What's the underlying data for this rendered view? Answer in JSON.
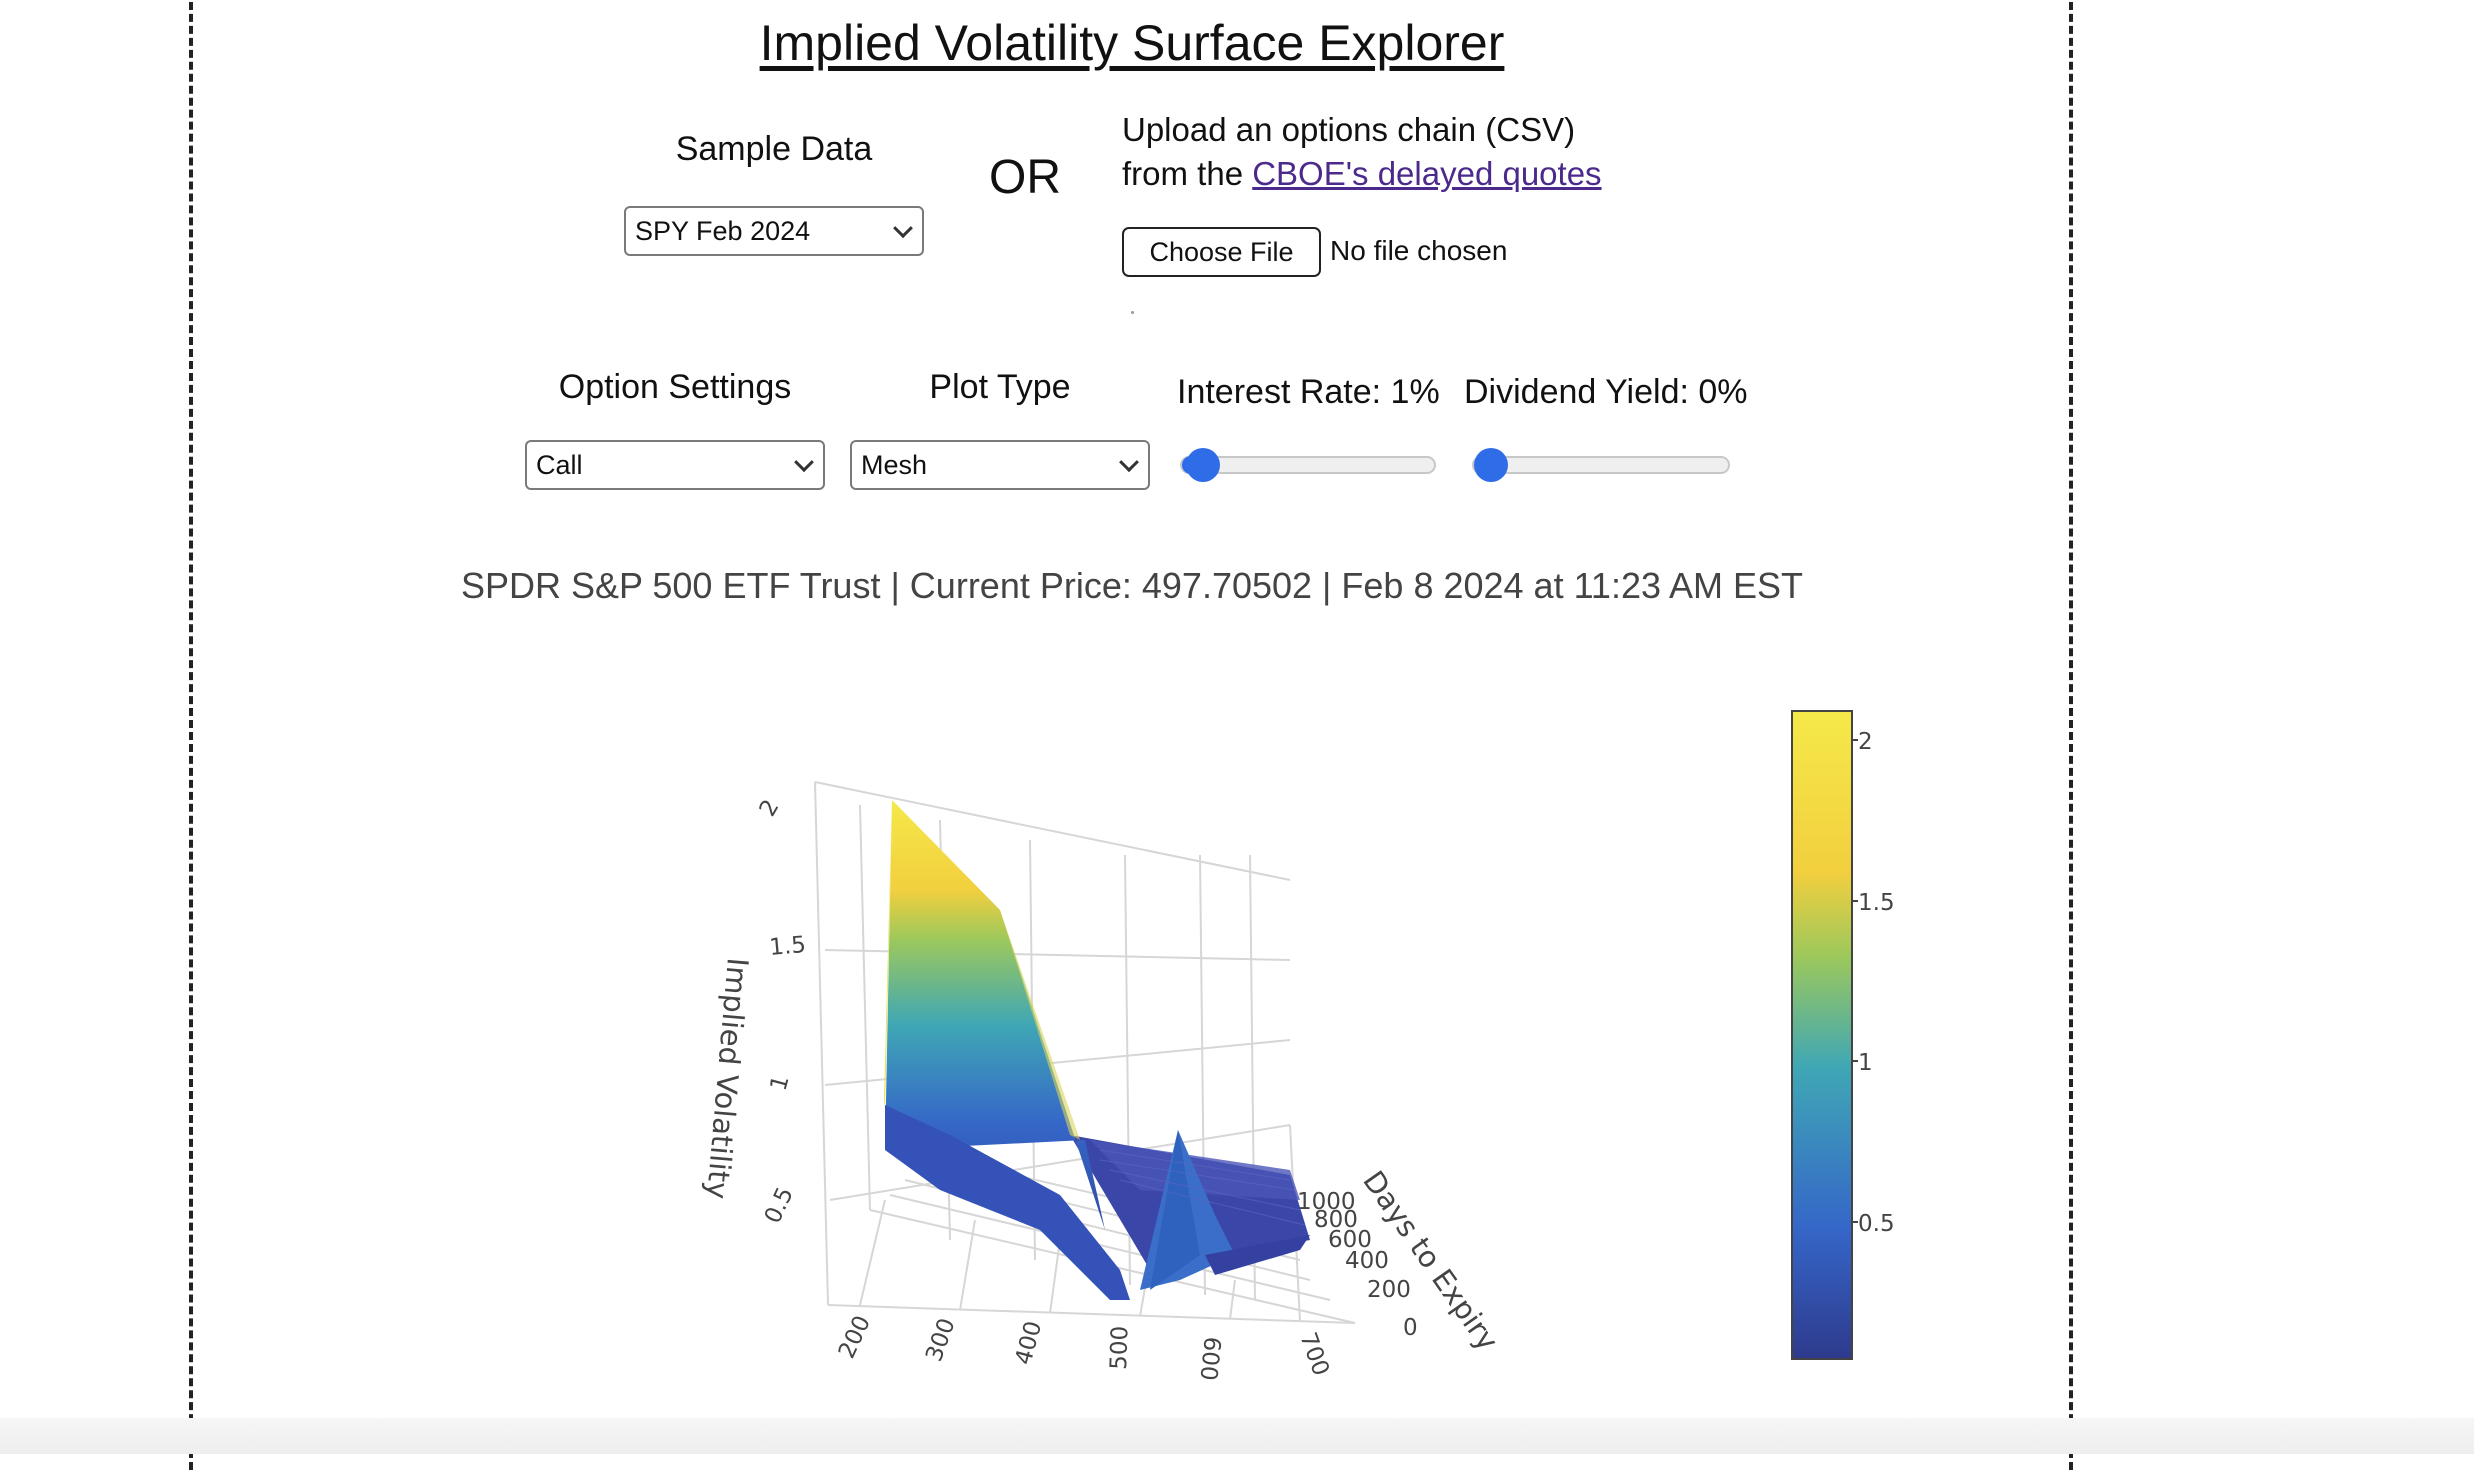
{
  "title": "Implied Volatility Surface Explorer",
  "sample": {
    "label": "Sample Data",
    "selected": "SPY Feb 2024"
  },
  "or_text": "OR",
  "upload": {
    "line1": "Upload an options chain (CSV)",
    "line2_prefix": "from the",
    "link_text": "CBOE's delayed quotes",
    "button_label": "Choose File",
    "status": "No file chosen"
  },
  "settings": {
    "option_label": "Option Settings",
    "option_selected": "Call",
    "plot_label": "Plot Type",
    "plot_selected": "Mesh",
    "interest_label": "Interest Rate: 1%",
    "interest_value": 1,
    "dividend_label": "Dividend Yield: 0%",
    "dividend_value": 0
  },
  "info_line": "SPDR S&P 500 ETF Trust | Current Price: 497.70502 | Feb 8 2024 at 11:23 AM EST",
  "chart_data": {
    "type": "surface",
    "zlabel": "Implied Volatility",
    "ylabel": "Days to Expiry",
    "xlabel": "",
    "x_ticks": [
      "200",
      "300",
      "400",
      "500",
      "600",
      "700"
    ],
    "y_ticks": [
      "0",
      "200",
      "400",
      "600",
      "800",
      "1000"
    ],
    "z_ticks": [
      "0.5",
      "1",
      "1.5",
      "2"
    ],
    "colorbar_ticks": [
      "0.5",
      "1",
      "1.5",
      "2"
    ],
    "colorscale": [
      "#2e3a8c",
      "#3566c8",
      "#3fa7b5",
      "#9cc85c",
      "#f2cf3e",
      "#f5e94a"
    ],
    "z_range": [
      0.05,
      2.1
    ],
    "surface": {
      "strikes": [
        190,
        260,
        330,
        400,
        450,
        500,
        550,
        600,
        650,
        700
      ],
      "near_expiry_iv": [
        2.1,
        1.7,
        1.05,
        0.45,
        0.28,
        0.12,
        0.6,
        0.22,
        0.18,
        0.16
      ],
      "long_expiry_iv": [
        0.45,
        0.38,
        0.3,
        0.24,
        0.2,
        0.18,
        0.17,
        0.17,
        0.16,
        0.16
      ]
    }
  }
}
